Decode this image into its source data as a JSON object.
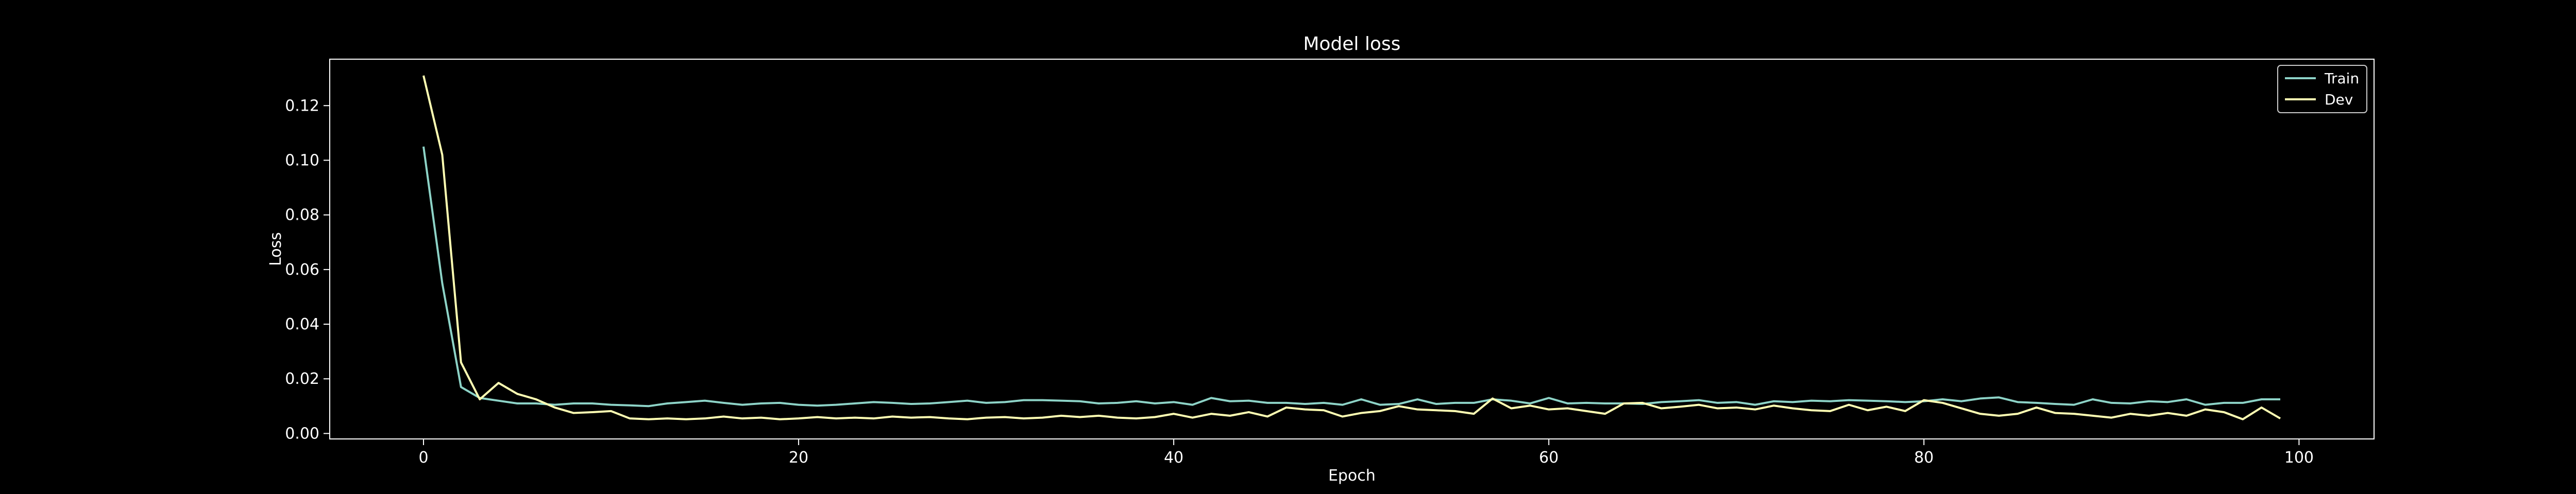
{
  "chart_data": {
    "type": "line",
    "title": "Model loss",
    "xlabel": "Epoch",
    "ylabel": "Loss",
    "xlim": [
      -5,
      104
    ],
    "ylim": [
      -0.002,
      0.137
    ],
    "xticks": [
      0,
      20,
      40,
      60,
      80,
      100
    ],
    "yticks": [
      0.0,
      0.02,
      0.04,
      0.06,
      0.08,
      0.1,
      0.12
    ],
    "ytick_labels": [
      "0.00",
      "0.02",
      "0.04",
      "0.06",
      "0.08",
      "0.10",
      "0.12"
    ],
    "grid": false,
    "legend": "top-right",
    "colors": {
      "background": "#000000",
      "foreground": "#ffffff",
      "train": "#8dd3c7",
      "dev": "#ffffb3"
    },
    "x": [
      0,
      1,
      2,
      3,
      4,
      5,
      6,
      7,
      8,
      9,
      10,
      11,
      12,
      13,
      14,
      15,
      16,
      17,
      18,
      19,
      20,
      21,
      22,
      23,
      24,
      25,
      26,
      27,
      28,
      29,
      30,
      31,
      32,
      33,
      34,
      35,
      36,
      37,
      38,
      39,
      40,
      41,
      42,
      43,
      44,
      45,
      46,
      47,
      48,
      49,
      50,
      51,
      52,
      53,
      54,
      55,
      56,
      57,
      58,
      59,
      60,
      61,
      62,
      63,
      64,
      65,
      66,
      67,
      68,
      69,
      70,
      71,
      72,
      73,
      74,
      75,
      76,
      77,
      78,
      79,
      80,
      81,
      82,
      83,
      84,
      85,
      86,
      87,
      88,
      89,
      90,
      91,
      92,
      93,
      94,
      95,
      96,
      97,
      98,
      99
    ],
    "series": [
      {
        "name": "Train",
        "values": [
          0.105,
          0.055,
          0.017,
          0.013,
          0.012,
          0.011,
          0.011,
          0.0105,
          0.011,
          0.011,
          0.0105,
          0.0103,
          0.01,
          0.011,
          0.0115,
          0.012,
          0.0112,
          0.0105,
          0.011,
          0.0112,
          0.0105,
          0.0102,
          0.0105,
          0.011,
          0.0115,
          0.0112,
          0.0108,
          0.011,
          0.0115,
          0.012,
          0.0112,
          0.0115,
          0.0122,
          0.0122,
          0.012,
          0.0118,
          0.011,
          0.0112,
          0.0118,
          0.011,
          0.0115,
          0.0105,
          0.013,
          0.0118,
          0.012,
          0.0112,
          0.0112,
          0.0108,
          0.0112,
          0.0105,
          0.0125,
          0.0105,
          0.0108,
          0.0125,
          0.0108,
          0.0112,
          0.0112,
          0.0125,
          0.012,
          0.011,
          0.013,
          0.011,
          0.0112,
          0.011,
          0.011,
          0.0108,
          0.0115,
          0.0118,
          0.0122,
          0.0112,
          0.0115,
          0.0105,
          0.0118,
          0.0115,
          0.012,
          0.0118,
          0.0122,
          0.012,
          0.0118,
          0.0115,
          0.0118,
          0.0125,
          0.0118,
          0.0128,
          0.0132,
          0.0115,
          0.0112,
          0.0108,
          0.0105,
          0.0125,
          0.0112,
          0.011,
          0.0118,
          0.0115,
          0.0125,
          0.0105,
          0.0112,
          0.0112,
          0.0125,
          0.0125
        ]
      },
      {
        "name": "Dev",
        "values": [
          0.131,
          0.102,
          0.026,
          0.0125,
          0.0185,
          0.0145,
          0.0125,
          0.0095,
          0.0075,
          0.0078,
          0.0082,
          0.0055,
          0.0052,
          0.0055,
          0.0052,
          0.0055,
          0.0062,
          0.0055,
          0.0058,
          0.0052,
          0.0055,
          0.006,
          0.0055,
          0.0058,
          0.0055,
          0.0062,
          0.0058,
          0.006,
          0.0055,
          0.0052,
          0.0058,
          0.006,
          0.0055,
          0.0058,
          0.0065,
          0.006,
          0.0065,
          0.0058,
          0.0055,
          0.006,
          0.0072,
          0.0058,
          0.0072,
          0.0065,
          0.0078,
          0.0062,
          0.0095,
          0.0088,
          0.0085,
          0.0062,
          0.0075,
          0.0082,
          0.01,
          0.0088,
          0.0085,
          0.0082,
          0.0072,
          0.0128,
          0.0092,
          0.0102,
          0.0088,
          0.0092,
          0.0082,
          0.0072,
          0.011,
          0.0112,
          0.0092,
          0.0098,
          0.0105,
          0.0092,
          0.0095,
          0.0088,
          0.0102,
          0.0092,
          0.0085,
          0.0082,
          0.0105,
          0.0085,
          0.0098,
          0.0082,
          0.0122,
          0.0112,
          0.0092,
          0.0072,
          0.0065,
          0.0072,
          0.0095,
          0.0075,
          0.0072,
          0.0065,
          0.0058,
          0.0072,
          0.0065,
          0.0075,
          0.0065,
          0.0088,
          0.0078,
          0.0052,
          0.0095,
          0.0055
        ]
      }
    ]
  }
}
